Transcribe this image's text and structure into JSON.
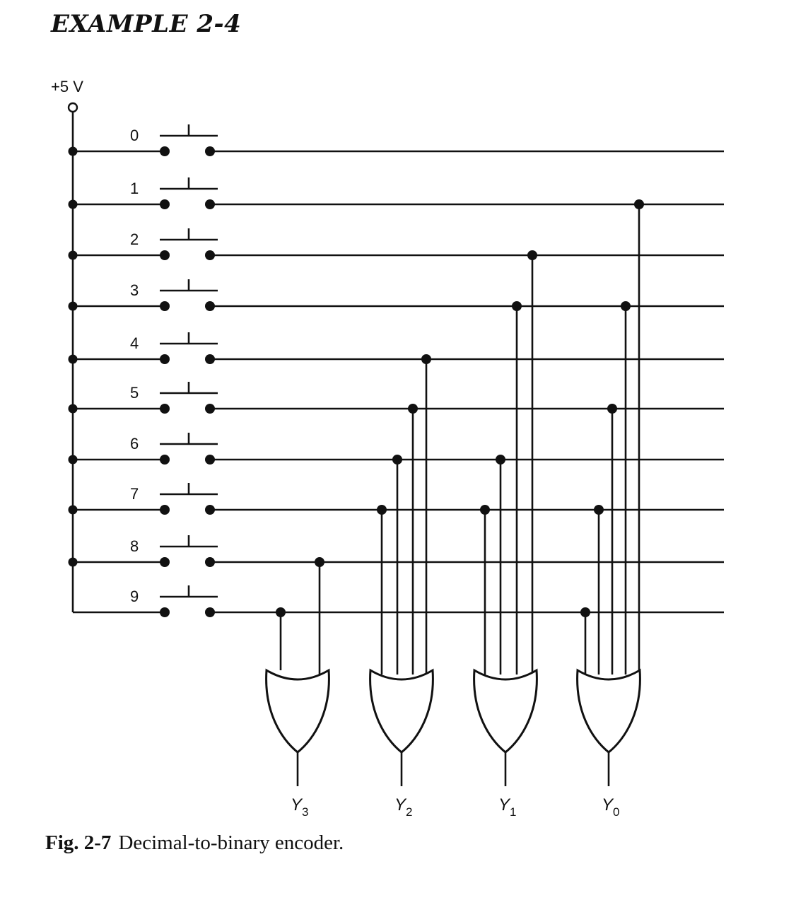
{
  "heading": "EXAMPLE   2-4",
  "caption": {
    "fig_number": "Fig. 2-7",
    "text": "Decimal-to-binary encoder."
  },
  "supply_label": "+5 V",
  "keys": [
    "0",
    "1",
    "2",
    "3",
    "4",
    "5",
    "6",
    "7",
    "8",
    "9"
  ],
  "outputs": [
    {
      "label": "Y",
      "sub": "3",
      "inputs": [
        8,
        9
      ]
    },
    {
      "label": "Y",
      "sub": "2",
      "inputs": [
        4,
        5,
        6,
        7
      ]
    },
    {
      "label": "Y",
      "sub": "1",
      "inputs": [
        2,
        3,
        6,
        7
      ]
    },
    {
      "label": "Y",
      "sub": "0",
      "inputs": [
        1,
        3,
        5,
        7,
        9
      ]
    }
  ]
}
